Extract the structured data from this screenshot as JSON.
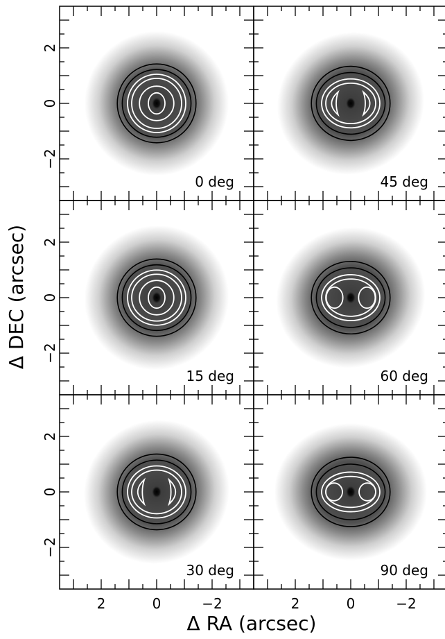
{
  "chart_data": {
    "type": "heatmap",
    "layout": {
      "rows": 3,
      "cols": 2
    },
    "xlabel": "Δ RA (arcsec)",
    "ylabel": "Δ DEC (arcsec)",
    "xlim": [
      3.5,
      -3.5
    ],
    "ylim": [
      -3.5,
      3.5
    ],
    "x_ticks": [
      2,
      0,
      -2
    ],
    "x_tick_labels": [
      "2",
      "0",
      "−2"
    ],
    "y_ticks": [
      -2,
      0,
      2
    ],
    "y_tick_labels": [
      "−2",
      "0",
      "2"
    ],
    "colormap": "grayscale (dark = high)",
    "contour_colors": {
      "inner": "#ffffff",
      "outer": "#000000"
    },
    "panels": [
      {
        "label": "0 deg",
        "angle": 0,
        "row": 0,
        "col": 0
      },
      {
        "label": "15 deg",
        "angle": 15,
        "row": 1,
        "col": 0
      },
      {
        "label": "30 deg",
        "angle": 30,
        "row": 2,
        "col": 0
      },
      {
        "label": "45 deg",
        "angle": 45,
        "row": 0,
        "col": 1
      },
      {
        "label": "60 deg",
        "angle": 60,
        "row": 1,
        "col": 1
      },
      {
        "label": "90 deg",
        "angle": 90,
        "row": 2,
        "col": 1
      }
    ]
  }
}
